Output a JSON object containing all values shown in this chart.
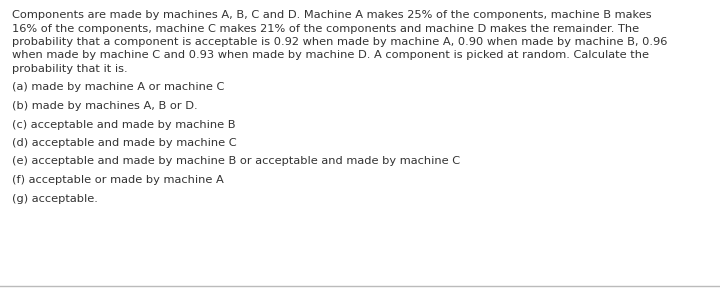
{
  "background_color": "#ffffff",
  "border_color": "#bbbbbb",
  "text_color": "#333333",
  "para_line1": "Components are made by machines A, B, C and D. Machine A makes 25% of the components, machine B makes",
  "para_line2": "16% of the components, machine C makes 21% of the components and machine D makes the remainder. The",
  "para_line3": "probability that a component is acceptable is 0.92 when made by machine A, 0.90 when made by machine B, 0.96",
  "para_line4": "when made by machine C and 0.93 when made by machine D. A component is picked at random. Calculate the",
  "para_line5": "probability that it is.",
  "items": [
    "(a) made by machine A or machine C",
    "(b) made by machines A, B or D.",
    "(c) acceptable and made by machine B",
    "(d) acceptable and made by machine C",
    "(e) acceptable and made by machine B or acceptable and made by machine C",
    "(f) acceptable or made by machine A",
    "(g) acceptable."
  ],
  "font_size": 8.2,
  "font_family": "DejaVu Sans"
}
